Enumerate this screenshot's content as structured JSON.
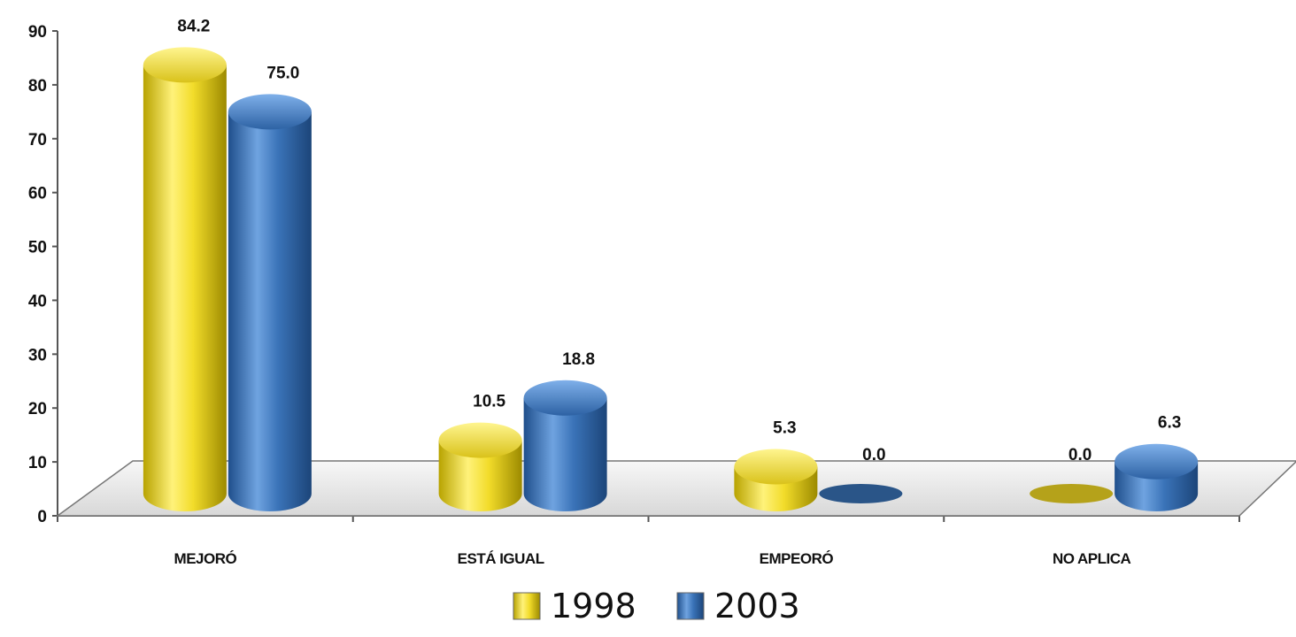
{
  "chart_data": {
    "type": "bar",
    "categories": [
      "MEJORÓ",
      "ESTÁ IGUAL",
      "EMPEORÓ",
      "NO APLICA"
    ],
    "series": [
      {
        "name": "1998",
        "values": [
          84.2,
          10.5,
          5.3,
          0.0
        ],
        "labels": [
          "84.2",
          "10.5",
          "5.3",
          "0.0"
        ],
        "color": "#e8d21e"
      },
      {
        "name": "2003",
        "values": [
          75.0,
          18.8,
          0.0,
          6.3
        ],
        "labels": [
          "75.0",
          "18.8",
          "0.0",
          "6.3"
        ],
        "color": "#3a73b8"
      }
    ],
    "yticks": [
      "0",
      "10",
      "20",
      "30",
      "40",
      "50",
      "60",
      "70",
      "80",
      "90"
    ],
    "ylim": [
      0,
      90
    ],
    "grid": false,
    "legend": "bottom-center"
  }
}
